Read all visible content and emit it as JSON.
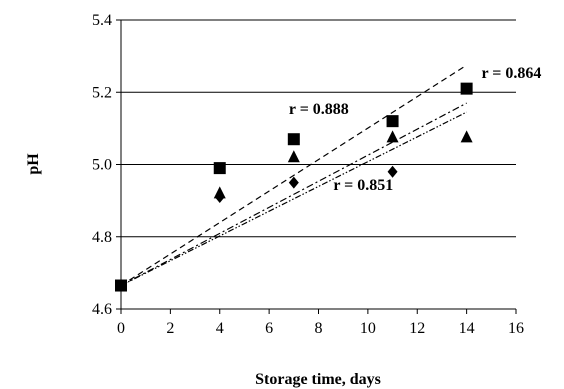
{
  "chart_data": {
    "type": "scatter",
    "title": "",
    "xlabel": "Storage time, days",
    "ylabel": "pH",
    "xlim": [
      0,
      16
    ],
    "ylim": [
      4.6,
      5.4
    ],
    "x_ticks": [
      "0",
      "2",
      "4",
      "6",
      "8",
      "10",
      "12",
      "14",
      "16"
    ],
    "y_ticks": [
      "4.6",
      "4.8",
      "5.0",
      "5.2",
      "5.4"
    ],
    "grid": "horizontal",
    "series": [
      {
        "marker": "square",
        "x": [
          0,
          4,
          7,
          11,
          14
        ],
        "y": [
          4.665,
          4.99,
          5.07,
          5.12,
          5.21
        ],
        "trendline": {
          "style": "dashed",
          "x": [
            0,
            14
          ],
          "y": [
            4.665,
            5.275
          ]
        }
      },
      {
        "marker": "triangle",
        "x": [
          0,
          4,
          7,
          11,
          14
        ],
        "y": [
          4.665,
          4.92,
          5.02,
          5.075,
          5.075
        ],
        "trendline": {
          "style": "dash-dot",
          "x": [
            0,
            14
          ],
          "y": [
            4.665,
            5.17
          ]
        }
      },
      {
        "marker": "diamond",
        "x": [
          0,
          4,
          7,
          11
        ],
        "y": [
          4.665,
          4.91,
          4.95,
          4.98
        ],
        "trendline": {
          "style": "dash-dot-dot",
          "x": [
            0,
            14
          ],
          "y": [
            4.665,
            5.145
          ]
        }
      }
    ],
    "annotations": [
      {
        "text": "r = 0.864",
        "x": 14.6,
        "y": 5.24
      },
      {
        "text": "r = 0.888",
        "x": 6.8,
        "y": 5.14
      },
      {
        "text": "r = 0.851",
        "x": 8.6,
        "y": 4.93
      }
    ]
  }
}
